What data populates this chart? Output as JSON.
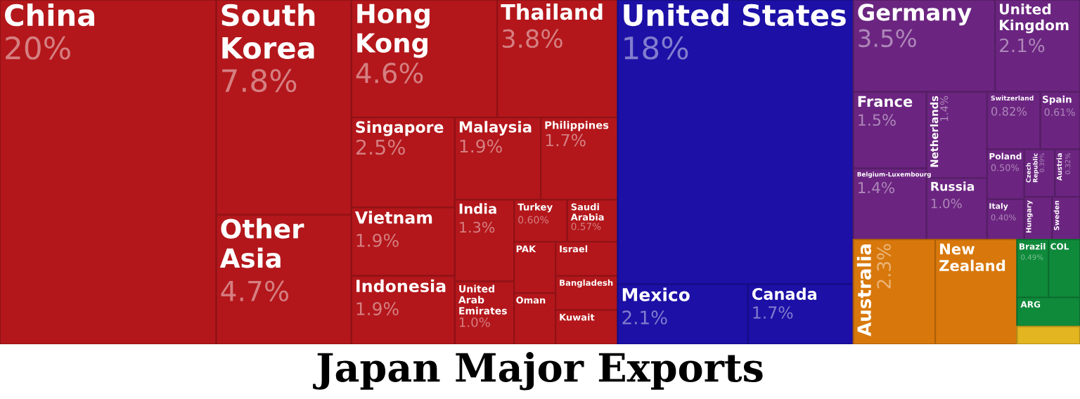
{
  "chart_data": {
    "type": "other",
    "title": "Japan Major Exports",
    "categories": [
      "China",
      "South Korea",
      "Other Asia",
      "Hong Kong",
      "Thailand",
      "Singapore",
      "Vietnam",
      "Indonesia",
      "Malaysia",
      "Philippines",
      "India",
      "United Arab Emirates",
      "Turkey",
      "Saudi Arabia",
      "PAK",
      "Oman",
      "Israel",
      "Bangladesh",
      "Kuwait",
      "United States",
      "Mexico",
      "Canada",
      "Germany",
      "United Kingdom",
      "France",
      "Belgium-Luxembourg",
      "Netherlands",
      "Russia",
      "Switzerland",
      "Spain",
      "Poland",
      "Italy",
      "Czech Republic",
      "Austria",
      "Hungary",
      "Sweden",
      "Australia",
      "New Zealand",
      "Brazil",
      "COL",
      "ARG",
      null
    ],
    "values": [
      20,
      7.8,
      4.7,
      4.6,
      3.8,
      2.5,
      1.9,
      1.9,
      1.9,
      1.7,
      1.3,
      1.0,
      0.6,
      0.57,
      null,
      null,
      null,
      null,
      null,
      18,
      2.1,
      1.7,
      3.5,
      2.1,
      1.5,
      1.4,
      1.4,
      1.0,
      0.82,
      0.61,
      0.5,
      0.4,
      0.39,
      0.32,
      null,
      null,
      2.3,
      null,
      0.49,
      null,
      null,
      null
    ],
    "value_labels": [
      "20%",
      "7.8%",
      "4.7%",
      "4.6%",
      "3.8%",
      "2.5%",
      "1.9%",
      "1.9%",
      "1.9%",
      "1.7%",
      "1.3%",
      "1.0%",
      "0.60%",
      "0.57%",
      null,
      null,
      null,
      null,
      null,
      "18%",
      "2.1%",
      "1.7%",
      "3.5%",
      "2.1%",
      "1.5%",
      "1.4%",
      "1.4%",
      "1.0%",
      "0.82%",
      "0.61%",
      "0.50%",
      "0.40%",
      "0.39%",
      "0.32%",
      null,
      null,
      "2.3%",
      null,
      "0.49%",
      null,
      null,
      null
    ],
    "colors": [
      "#b3171b",
      "#b3171b",
      "#b3171b",
      "#b3171b",
      "#b3171b",
      "#b3171b",
      "#b3171b",
      "#b3171b",
      "#b3171b",
      "#b3171b",
      "#b3171b",
      "#b3171b",
      "#b3171b",
      "#b3171b",
      "#b3171b",
      "#b3171b",
      "#b3171b",
      "#b3171b",
      "#b3171b",
      "#1c10a6",
      "#1c10a6",
      "#1c10a6",
      "#6b2580",
      "#6b2580",
      "#6b2580",
      "#6b2580",
      "#6b2580",
      "#6b2580",
      "#6b2580",
      "#6b2580",
      "#6b2580",
      "#6b2580",
      "#6b2580",
      "#6b2580",
      "#6b2580",
      "#6b2580",
      "#d8780c",
      "#d8780c",
      "#0f8a3b",
      "#0f8a3b",
      "#0f8a3b",
      "#e3b520"
    ]
  }
}
